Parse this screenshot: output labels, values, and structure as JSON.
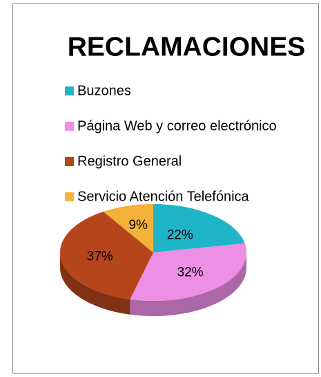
{
  "chart_data": {
    "type": "pie",
    "title": "RECLAMACIONES",
    "categories": [
      "Buzones",
      "Página Web y correo electrónico",
      "Registro General",
      "Servicio Atención Telefónica"
    ],
    "values": [
      22,
      32,
      37,
      9
    ],
    "value_labels": [
      "22%",
      "32%",
      "37%",
      "9%"
    ],
    "colors": [
      "#1fb5c9",
      "#ee8fe6",
      "#b5461c",
      "#f5b23b"
    ]
  }
}
